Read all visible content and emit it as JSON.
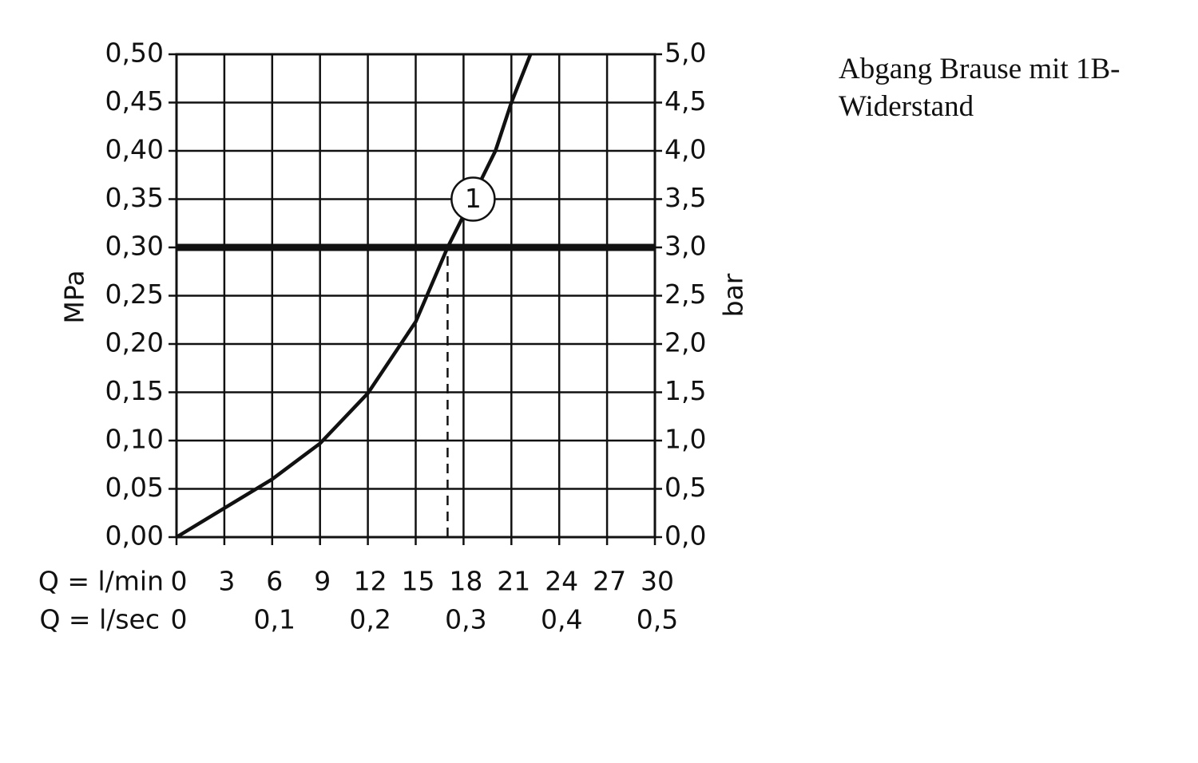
{
  "chart_data": {
    "type": "line",
    "x": [
      0,
      3,
      6,
      9,
      12,
      15,
      17,
      18,
      20,
      21,
      22.2
    ],
    "series": [
      {
        "values": [
          0,
          0.03,
          0.06,
          0.097,
          0.149,
          0.223,
          0.3,
          0.333,
          0.4,
          0.45,
          0.5
        ],
        "color": "#111111"
      }
    ],
    "xlim": [
      0,
      30
    ],
    "xticks": [
      0,
      3,
      6,
      9,
      12,
      15,
      18,
      21,
      24,
      27,
      30
    ],
    "xlabel": "Q = l/min",
    "x2lim": [
      0,
      0.5
    ],
    "x2ticks": [
      0,
      {
        "value": 0.1,
        "label": "0,1"
      },
      {
        "value": 0.2,
        "label": "0,2"
      },
      {
        "value": 0.3,
        "label": "0,3"
      },
      {
        "value": 0.4,
        "label": "0,4"
      },
      {
        "value": 0.5,
        "label": "0,5"
      }
    ],
    "x2label": "Q = l/sec",
    "ylim": [
      0,
      0.5
    ],
    "yticks": [
      {
        "value": 0,
        "label": "0,00"
      },
      {
        "value": 0.05,
        "label": "0,05"
      },
      {
        "value": 0.1,
        "label": "0,10"
      },
      {
        "value": 0.15,
        "label": "0,15"
      },
      {
        "value": 0.2,
        "label": "0,20"
      },
      {
        "value": 0.25,
        "label": "0,25"
      },
      {
        "value": 0.3,
        "label": "0,30"
      },
      {
        "value": 0.35,
        "label": "0,35"
      },
      {
        "value": 0.4,
        "label": "0,40"
      },
      {
        "value": 0.45,
        "label": "0,45"
      },
      {
        "value": 0.5,
        "label": "0,50"
      }
    ],
    "ylabel": "MPa",
    "y2lim": [
      0,
      5
    ],
    "y2ticks": [
      {
        "value": 0,
        "label": "0,0"
      },
      {
        "value": 0.5,
        "label": "0,5"
      },
      {
        "value": 1,
        "label": "1,0"
      },
      {
        "value": 1.5,
        "label": "1,5"
      },
      {
        "value": 2,
        "label": "2,0"
      },
      {
        "value": 2.5,
        "label": "2,5"
      },
      {
        "value": 3,
        "label": "3,0"
      },
      {
        "value": 3.5,
        "label": "3,5"
      },
      {
        "value": 4,
        "label": "4,0"
      },
      {
        "value": 4.5,
        "label": "4,5"
      },
      {
        "value": 5,
        "label": "5,0"
      }
    ],
    "y2label": "bar",
    "grid": true,
    "hlines": [
      0.3
    ],
    "vlines": [
      17
    ],
    "annotations": [
      {
        "text": "1",
        "x": 18.6,
        "y": 0.35
      }
    ],
    "note_lines": [
      "Abgang Brause mit 1B-",
      "Widerstand"
    ]
  }
}
